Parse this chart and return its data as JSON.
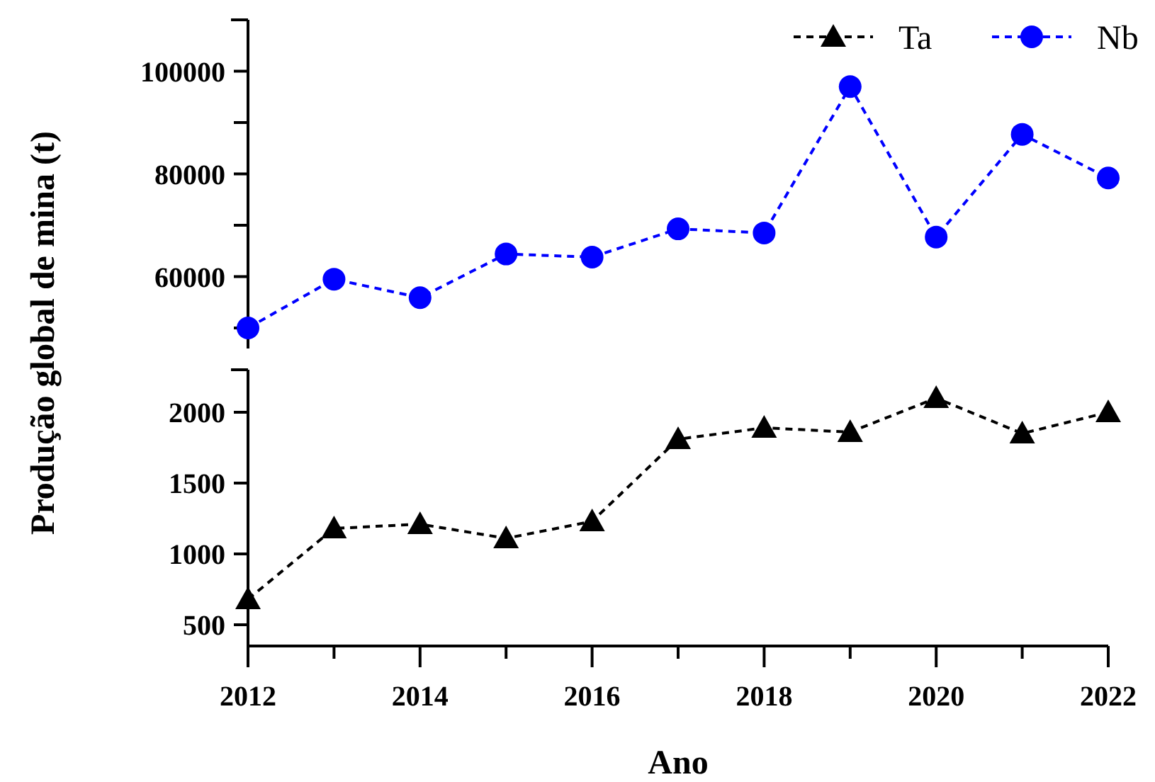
{
  "chart_data": [
    {
      "type": "line",
      "ylabel": "Produção global de mina (t)",
      "x": [
        2012,
        2013,
        2014,
        2015,
        2016,
        2017,
        2018,
        2019,
        2020,
        2021,
        2022
      ],
      "xlim": [
        2012,
        2022
      ],
      "ylim": [
        46000,
        110000
      ],
      "yticks": [
        {
          "value": 50000,
          "label": null
        },
        60000,
        {
          "value": 70000,
          "label": null
        },
        80000,
        {
          "value": 90000,
          "label": null
        },
        100000
      ],
      "tick_labels": "y",
      "legend": "top right",
      "marker": "circle",
      "series": [
        {
          "name": "Nb",
          "color": "#0000ff",
          "line_style": "dashed",
          "values": [
            50000,
            59500,
            55900,
            64400,
            63800,
            69300,
            68500,
            97000,
            67700,
            87700,
            79200
          ]
        }
      ]
    },
    {
      "type": "line",
      "xlabel": "Ano",
      "x": [
        2012,
        2013,
        2014,
        2015,
        2016,
        2017,
        2018,
        2019,
        2020,
        2021,
        2022
      ],
      "xlim": [
        2012,
        2022
      ],
      "xticks": [
        2012,
        {
          "value": 2013,
          "label": null
        },
        2014,
        {
          "value": 2015,
          "label": null
        },
        2016,
        {
          "value": 2017,
          "label": null
        },
        2018,
        {
          "value": 2019,
          "label": null
        },
        2020,
        {
          "value": 2021,
          "label": null
        },
        2022
      ],
      "ylim": [
        350,
        2300
      ],
      "yticks": [
        500,
        1000,
        1500,
        2000
      ],
      "legend": "top right",
      "marker": "triangle",
      "series": [
        {
          "name": "Ta",
          "color": "#000000",
          "line_style": "dashed",
          "values": [
            680,
            1180,
            1210,
            1110,
            1230,
            1810,
            1890,
            1860,
            2100,
            1850,
            2000
          ]
        }
      ]
    }
  ]
}
